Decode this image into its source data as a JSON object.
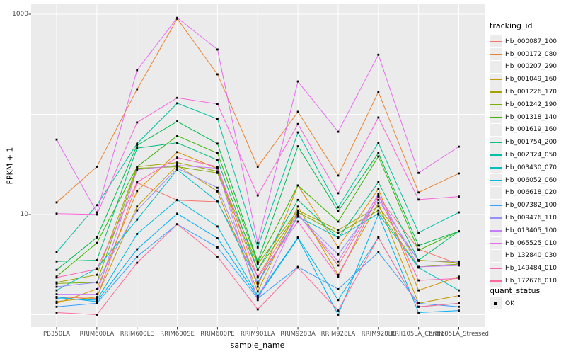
{
  "chart_data": {
    "type": "line",
    "title": "",
    "xlabel": "sample_name",
    "ylabel": "FPKM + 1",
    "y_scale": "log10",
    "ylim": [
      1,
      1000
    ],
    "y_tick_labels": [
      "1000",
      "10"
    ],
    "y_tick_values": [
      1000,
      10
    ],
    "y_gridline_values": [
      1,
      10,
      100,
      1000
    ],
    "grid": true,
    "legend_position": "right",
    "point_shape": "small-black-square",
    "categories": [
      "PB350LA",
      "RRIM600LA",
      "RRIM600LE",
      "RRIM600SE",
      "RRIM600PE",
      "RRIM901LA",
      "RRIM928BA",
      "RRIM928LA",
      "RRIM928LE",
      "RRII105LA_Control",
      "RRII105LA_Stressed"
    ],
    "series": [
      {
        "name": "Hb_000087_100",
        "color": "#F8766D",
        "values": [
          1.5,
          1.45,
          20.8,
          13.9,
          13.4,
          2.4,
          10.2,
          3.1,
          15,
          4.5,
          3.2
        ]
      },
      {
        "name": "Hb_000172_080",
        "color": "#EA8331",
        "values": [
          13.2,
          30,
          178,
          900,
          251,
          30,
          106,
          24.5,
          167,
          16.6,
          25.7
        ]
      },
      {
        "name": "Hb_000207_290",
        "color": "#D89000",
        "values": [
          1.3,
          1.8,
          17.1,
          42,
          28.8,
          1.9,
          19.5,
          4.7,
          18,
          1.75,
          2.4
        ]
      },
      {
        "name": "Hb_001049_160",
        "color": "#C09B00",
        "values": [
          1.35,
          1.5,
          12,
          31,
          17,
          1.7,
          12,
          2.5,
          13,
          1.3,
          1.55
        ]
      },
      {
        "name": "Hb_001226_170",
        "color": "#A3A500",
        "values": [
          2.1,
          2.5,
          30,
          33,
          27,
          3.2,
          11,
          7,
          12,
          3.5,
          3.3
        ]
      },
      {
        "name": "Hb_001242_190",
        "color": "#7CAE00",
        "values": [
          2.05,
          2.1,
          29,
          30,
          26,
          2.8,
          10.5,
          6.5,
          11,
          3.0,
          3.2
        ]
      },
      {
        "name": "Hb_001318_140",
        "color": "#39B600",
        "values": [
          2.4,
          5.2,
          30,
          61,
          41,
          3.3,
          19.5,
          8.5,
          38,
          4.4,
          6.8
        ]
      },
      {
        "name": "Hb_001619_160",
        "color": "#00BB4E",
        "values": [
          2.8,
          5.9,
          49,
          85,
          51,
          3.4,
          48,
          10.8,
          41,
          4.9,
          6.8
        ]
      },
      {
        "name": "Hb_001754_200",
        "color": "#00BF7D",
        "values": [
          3.4,
          3.5,
          46,
          52,
          35,
          2.8,
          14,
          5.8,
          21,
          3.5,
          6.8
        ]
      },
      {
        "name": "Hb_002324_050",
        "color": "#00C1A3",
        "values": [
          4.2,
          12.4,
          51,
          129,
          90,
          4.7,
          66,
          11.8,
          52,
          6.6,
          10.5
        ]
      },
      {
        "name": "Hb_003430_070",
        "color": "#00BFC4",
        "values": [
          1.75,
          2.9,
          8.9,
          28,
          13.5,
          2.1,
          9.5,
          5.9,
          10.2,
          2.95,
          1.75
        ]
      },
      {
        "name": "Hb_006052_060",
        "color": "#00BAE0",
        "values": [
          1.45,
          1.4,
          6.4,
          14,
          7.6,
          1.55,
          5.9,
          1.4,
          5.9,
          1.2,
          1.3
        ]
      },
      {
        "name": "Hb_006618_020",
        "color": "#00B0F6",
        "values": [
          1.5,
          1.35,
          4.5,
          10.2,
          5.8,
          1.5,
          5.8,
          1.0,
          10,
          1.05,
          1.1
        ]
      },
      {
        "name": "Hb_007382_100",
        "color": "#35A2FF",
        "values": [
          1.2,
          1.3,
          3.8,
          8,
          4.7,
          1.45,
          3.0,
          1.8,
          4.2,
          1.3,
          1.2
        ]
      },
      {
        "name": "Hb_009476_110",
        "color": "#9590FF",
        "values": [
          1.9,
          2.1,
          11,
          29,
          18.5,
          2.05,
          9.8,
          4.0,
          14,
          3.45,
          3.4
        ]
      },
      {
        "name": "Hb_013405_100",
        "color": "#C77CFF",
        "values": [
          1.6,
          1.6,
          28,
          31,
          29,
          1.4,
          10,
          3.4,
          16,
          3.0,
          3.1
        ]
      },
      {
        "name": "Hb_065525_010",
        "color": "#E76BF3",
        "values": [
          56,
          10.5,
          276,
          920,
          444,
          5.2,
          213,
          67,
          394,
          26,
          47.6
        ]
      },
      {
        "name": "Hb_132840_030",
        "color": "#FA62DB",
        "values": [
          10.2,
          10,
          83,
          146,
          127,
          15.5,
          80,
          16.3,
          93,
          14.1,
          15.1
        ]
      },
      {
        "name": "Hb_149484_010",
        "color": "#FF62BC",
        "values": [
          2.35,
          2.85,
          21,
          37,
          30,
          2.35,
          8.5,
          2.4,
          15.5,
          2.2,
          2.3
        ]
      },
      {
        "name": "Hb_172676_010",
        "color": "#FF6A98",
        "values": [
          1.05,
          1.0,
          3.3,
          8,
          3.8,
          1.13,
          2.95,
          1.1,
          5.9,
          1.2,
          1.3
        ]
      }
    ]
  },
  "legend": {
    "tracking_title": "tracking_id",
    "quant_title": "quant_status",
    "quant_ok_label": "OK"
  },
  "colors": {
    "panel_bg": "#EBEBEB",
    "gridline": "#FFFFFF",
    "tick_mark": "#333333",
    "tick_text": "#4D4D4D",
    "axis_title": "#000000",
    "point": "#000000",
    "legend_key_bg": "#ECECEC"
  }
}
